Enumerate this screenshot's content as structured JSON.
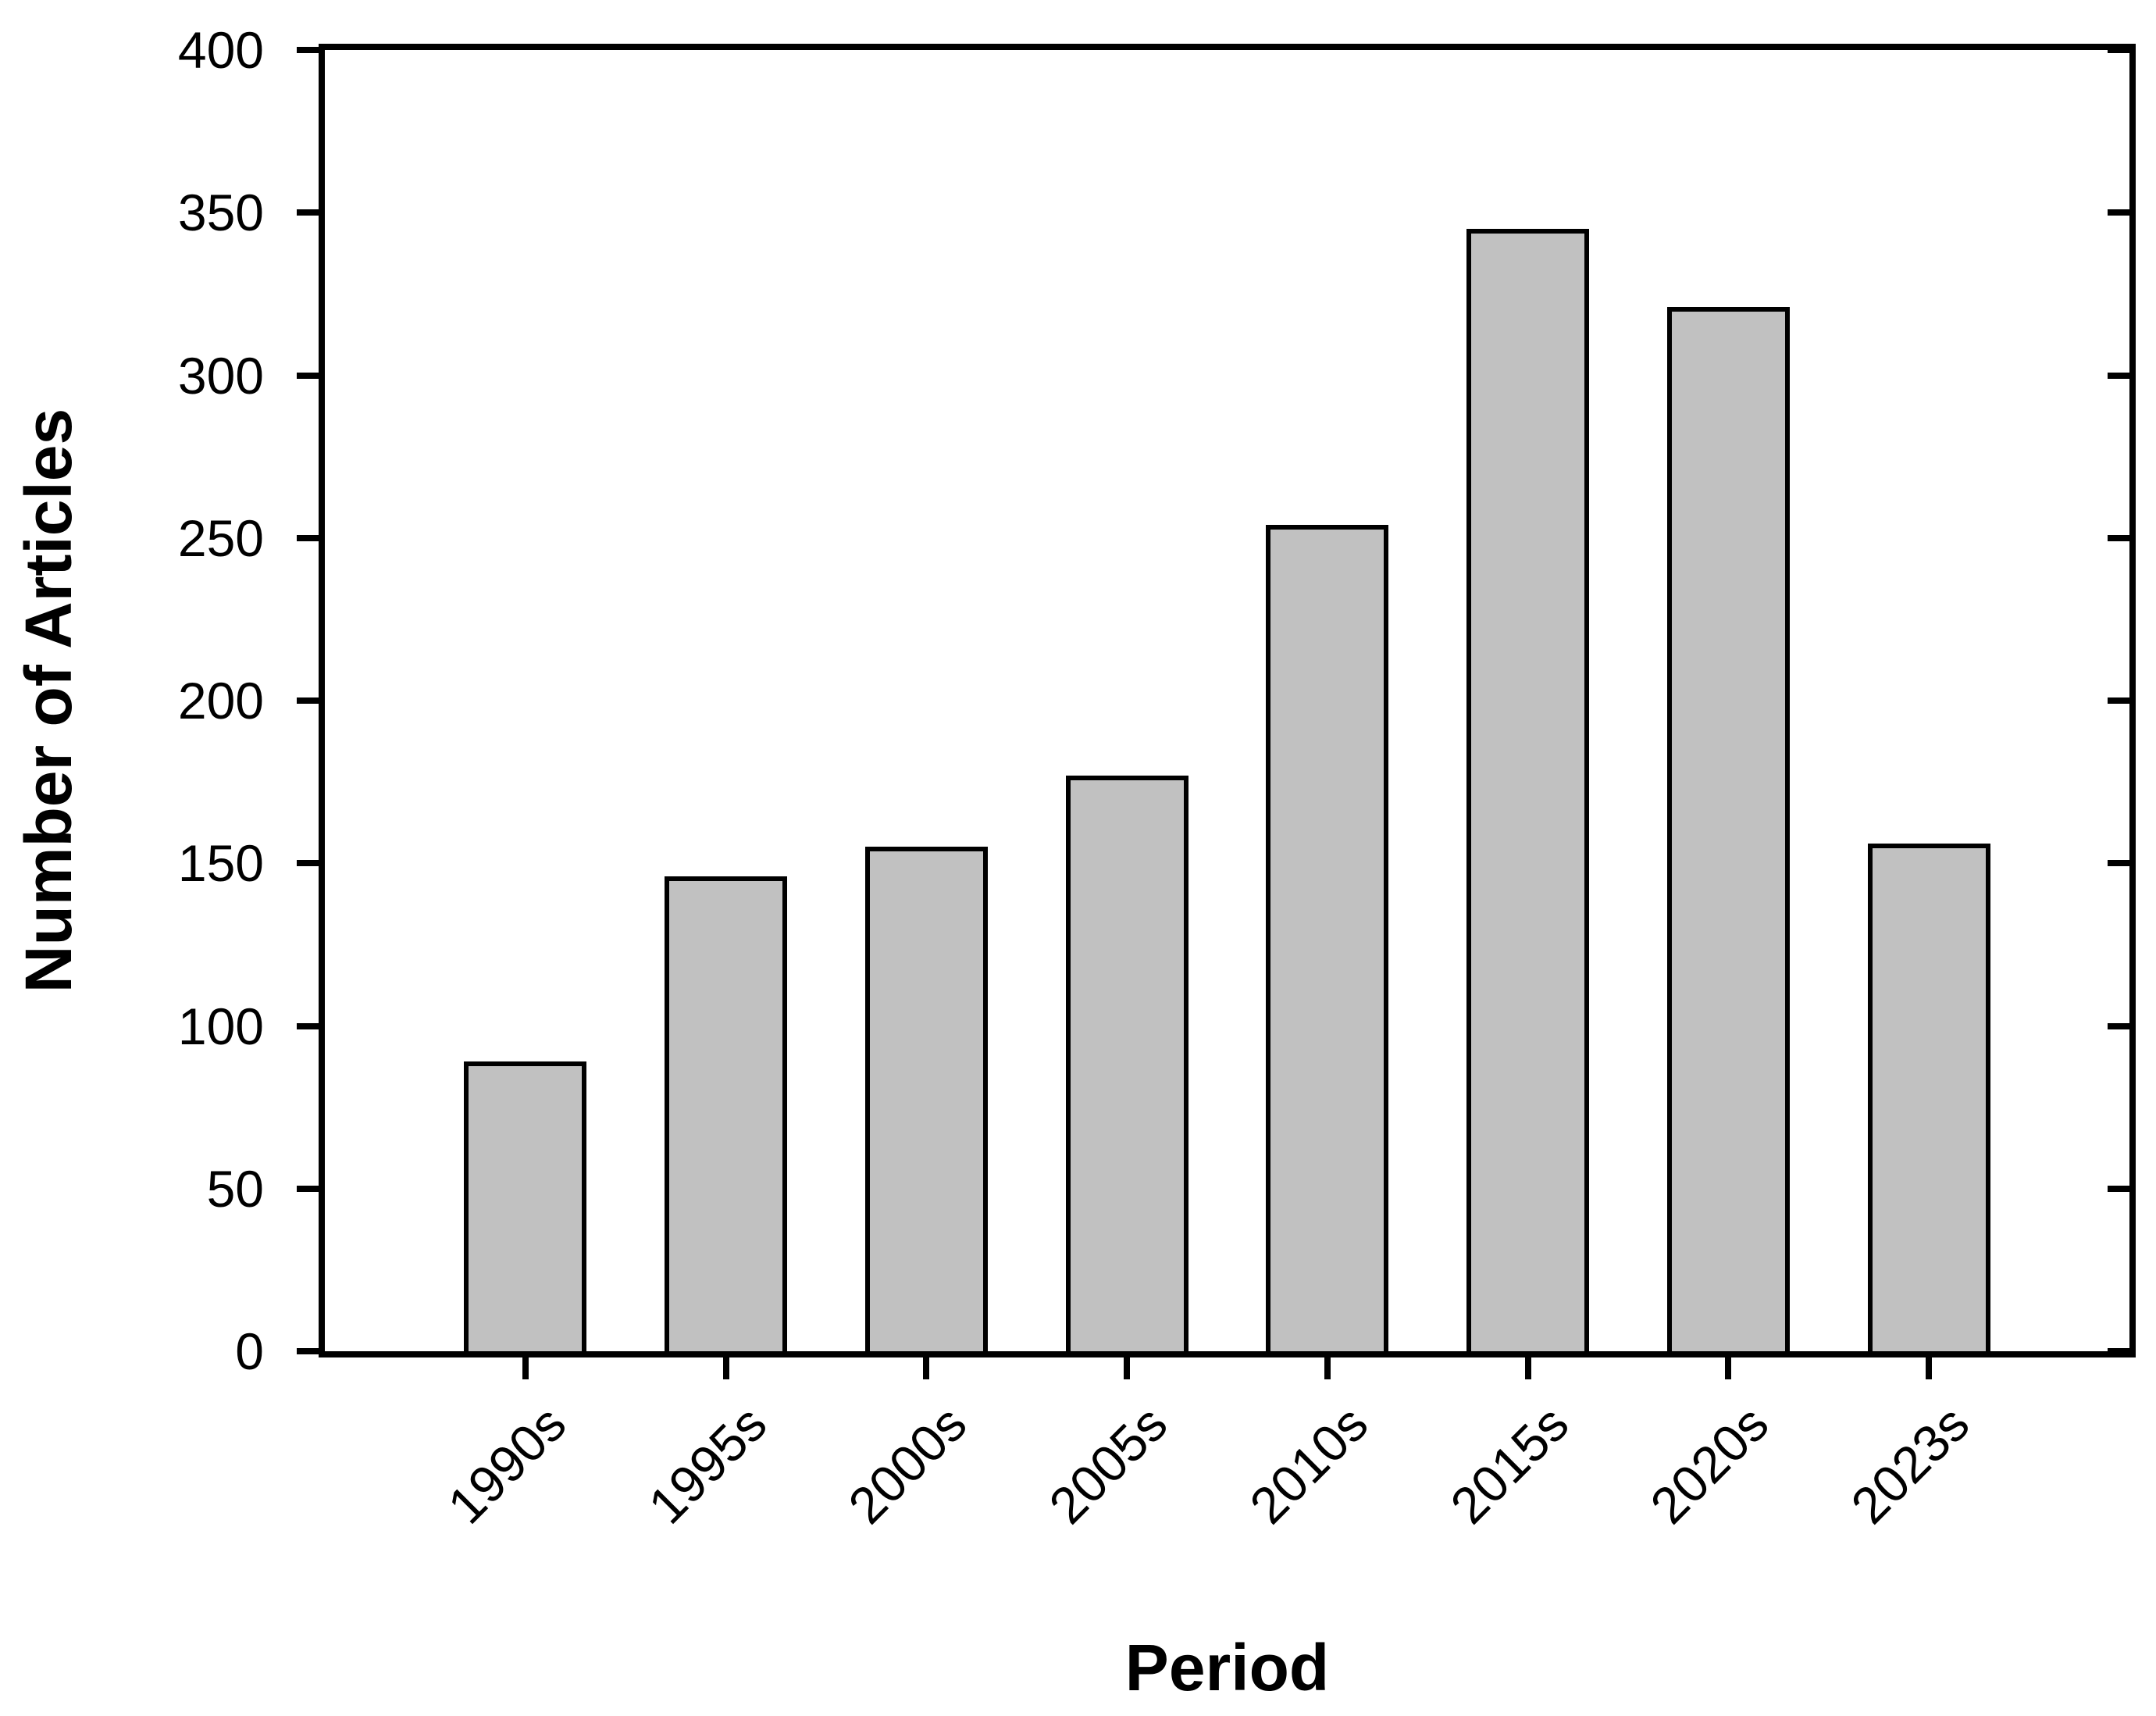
{
  "chart_data": {
    "type": "bar",
    "title": "",
    "xlabel": "Period",
    "ylabel": "Number of Articles",
    "categories": [
      "1990s",
      "1995s",
      "2000s",
      "2005s",
      "2010s",
      "2015s",
      "2020s",
      "2023s"
    ],
    "values": [
      89,
      146,
      155,
      177,
      254,
      345,
      321,
      156
    ],
    "ylim": [
      0,
      400
    ],
    "yticks": [
      0,
      50,
      100,
      150,
      200,
      250,
      300,
      350,
      400
    ],
    "grid": false,
    "legend": null,
    "bar_fill_color": "#c1c1c1",
    "bar_border_color": "#000000",
    "axis_color": "#000000",
    "background_color": "#ffffff",
    "x_labels_rotation_degrees": -45,
    "frame": "full-box",
    "tick_style": "outward-left-bottom, inward-right"
  }
}
